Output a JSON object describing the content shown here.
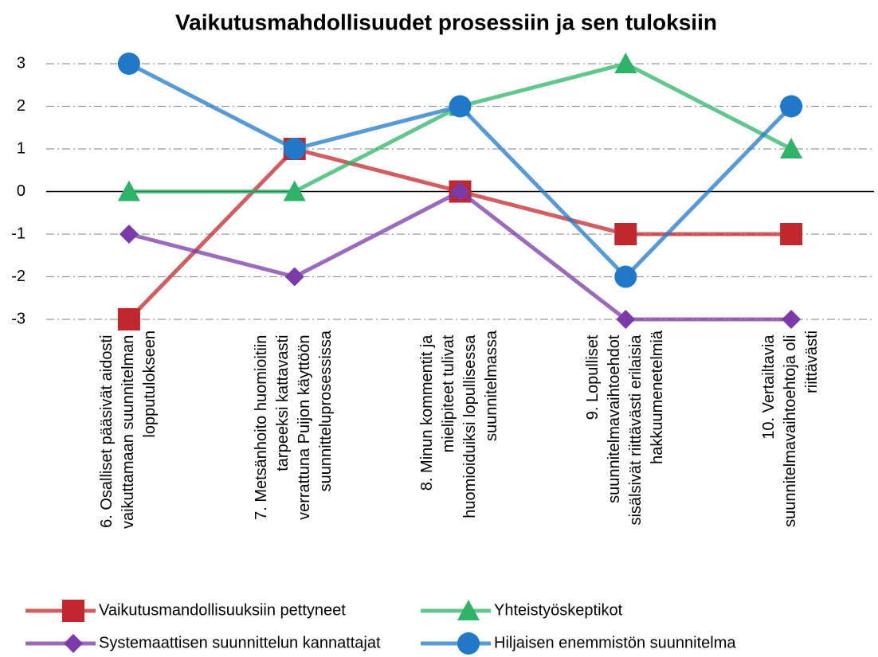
{
  "chart_data": {
    "type": "line",
    "title": "Vaikutusmahdollisuudet prosessiin ja sen tuloksiin",
    "categories": [
      "6. Osalliset pääsivät aidosti vaikuttamaan suunnitelman lopputulokseen",
      "7. Metsänhoito huomioitiin tarpeeksi kattavasti verrattuna Puijon käyttöön suunnitteluprosessissa",
      "8. Minun kommentit ja mielipiteet tulivat huomioiduiksi lopullisessa suunnitelmassa",
      "9. Lopulliset suunnitelmavaihtoehdot sisälsivät riittävästi erilaisia hakkuumenetelmiä",
      "10. Vertailtavia suunnitelmavaihtoehtoja oli riittävästi"
    ],
    "series": [
      {
        "name": "Vaikutusmandollisuuksiin pettyneet",
        "color": "#c0282d",
        "marker": "square",
        "values": [
          -3,
          1,
          0,
          -1,
          -1
        ]
      },
      {
        "name": "Yhteistyöskeptikot",
        "color": "#2fb36a",
        "marker": "triangle",
        "values": [
          0,
          0,
          2,
          3,
          1
        ]
      },
      {
        "name": "Systemaattisen suunnittelun kannattajat",
        "color": "#7a3aa8",
        "marker": "diamond",
        "values": [
          -1,
          -2,
          0,
          -3,
          -3
        ]
      },
      {
        "name": "Hiljaisen enemmistön suunnitelma",
        "color": "#1f78c8",
        "marker": "circle",
        "values": [
          3,
          1,
          2,
          -2,
          2
        ]
      }
    ],
    "ylim": [
      -3,
      3
    ],
    "yticks": [
      -3,
      -2,
      -1,
      0,
      1,
      2,
      3
    ],
    "grid": true
  }
}
